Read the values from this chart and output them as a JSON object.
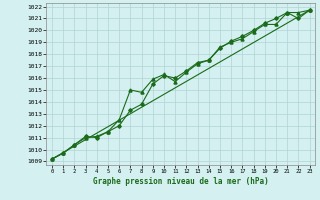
{
  "title": "Graphe pression niveau de la mer (hPa)",
  "bg_color": "#d4f0f0",
  "grid_color": "#b0d4d4",
  "line_color": "#1a6b1a",
  "xlim": [
    -0.5,
    23.5
  ],
  "ylim": [
    1008.7,
    1022.3
  ],
  "yticks": [
    1009,
    1010,
    1011,
    1012,
    1013,
    1014,
    1015,
    1016,
    1017,
    1018,
    1019,
    1020,
    1021,
    1022
  ],
  "xticks": [
    0,
    1,
    2,
    3,
    4,
    5,
    6,
    7,
    8,
    9,
    10,
    11,
    12,
    13,
    14,
    15,
    16,
    17,
    18,
    19,
    20,
    21,
    22,
    23
  ],
  "series1_x": [
    0,
    1,
    2,
    3,
    4,
    5,
    6,
    7,
    8,
    9,
    10,
    11,
    12,
    13,
    14,
    15,
    16,
    17,
    18,
    19,
    20,
    21,
    22,
    23
  ],
  "series1_y": [
    1009.2,
    1009.7,
    1010.4,
    1011.0,
    1011.1,
    1011.5,
    1012.5,
    1015.0,
    1014.8,
    1015.9,
    1016.3,
    1015.7,
    1016.5,
    1017.2,
    1017.5,
    1018.6,
    1019.0,
    1019.3,
    1019.9,
    1020.5,
    1020.5,
    1021.5,
    1021.5,
    1021.7
  ],
  "series2_x": [
    0,
    1,
    2,
    3,
    4,
    5,
    6,
    7,
    8,
    9,
    10,
    11,
    12,
    13,
    14,
    15,
    16,
    17,
    18,
    19,
    20,
    21,
    22,
    23
  ],
  "series2_y": [
    1009.2,
    1009.7,
    1010.4,
    1011.1,
    1011.0,
    1011.5,
    1012.0,
    1013.3,
    1013.8,
    1015.5,
    1016.2,
    1016.0,
    1016.6,
    1017.3,
    1017.5,
    1018.5,
    1019.1,
    1019.5,
    1020.0,
    1020.6,
    1021.0,
    1021.5,
    1021.0,
    1021.7
  ],
  "series3_x": [
    0,
    23
  ],
  "series3_y": [
    1009.2,
    1021.7
  ]
}
